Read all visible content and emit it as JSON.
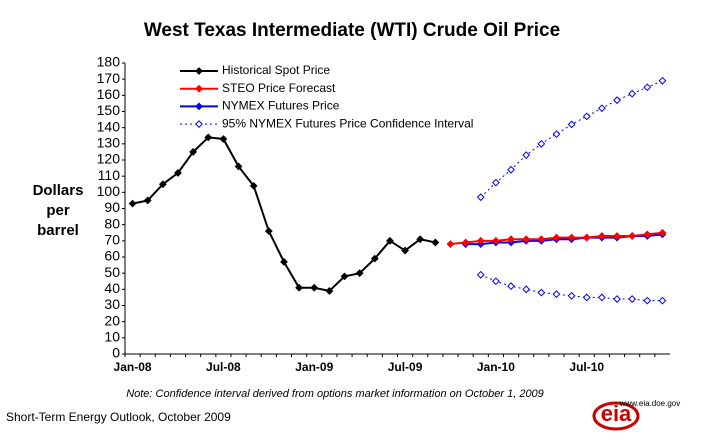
{
  "chart_data": {
    "type": "line",
    "title": "West Texas Intermediate (WTI) Crude Oil Price",
    "ylabel": [
      "Dollars",
      "per",
      "barrel"
    ],
    "note": "Note: Confidence interval derived from options market information on October 1, 2009",
    "source": "Short-Term Energy Outlook, October 2009",
    "logo": {
      "text": "eia",
      "url": "www.eia.doe.gov"
    },
    "categories": [
      "Jan-08",
      null,
      null,
      null,
      null,
      null,
      "Jul-08",
      null,
      null,
      null,
      null,
      null,
      "Jan-09",
      null,
      null,
      null,
      null,
      null,
      "Jul-09",
      null,
      null,
      null,
      null,
      null,
      "Jan-10",
      null,
      null,
      null,
      null,
      null,
      "Jul-10",
      null,
      null,
      null,
      null,
      null
    ],
    "ylim": [
      0,
      180
    ],
    "yticks": [
      0,
      10,
      20,
      30,
      40,
      50,
      60,
      70,
      80,
      90,
      100,
      110,
      120,
      130,
      140,
      150,
      160,
      170,
      180
    ],
    "grid": false,
    "series": [
      {
        "name": "Historical Spot Price",
        "color": "#000000",
        "marker": "filled",
        "dash": "solid",
        "values": [
          93,
          95,
          105,
          112,
          125,
          134,
          133,
          116,
          104,
          76,
          57,
          41,
          41,
          39,
          48,
          50,
          59,
          70,
          64,
          71,
          69,
          null,
          null,
          null,
          null,
          null,
          null,
          null,
          null,
          null,
          null,
          null,
          null,
          null,
          null,
          null
        ]
      },
      {
        "name": "STEO Price Forecast",
        "color": "#ff0000",
        "marker": "filled",
        "dash": "solid",
        "values": [
          null,
          null,
          null,
          null,
          null,
          null,
          null,
          null,
          null,
          null,
          null,
          null,
          null,
          null,
          null,
          null,
          null,
          null,
          null,
          null,
          null,
          68,
          69,
          70,
          70,
          71,
          71,
          71,
          72,
          72,
          72,
          73,
          73,
          73,
          74,
          75
        ]
      },
      {
        "name": "NYMEX Futures Price",
        "color": "#0000ff",
        "marker": "filled",
        "dash": "solid",
        "values": [
          null,
          null,
          null,
          null,
          null,
          null,
          null,
          null,
          null,
          null,
          null,
          null,
          null,
          null,
          null,
          null,
          null,
          null,
          null,
          null,
          null,
          null,
          68,
          68,
          69,
          69,
          70,
          70,
          71,
          71,
          72,
          72,
          72,
          73,
          73,
          74
        ]
      },
      {
        "name": "95% NYMEX Futures Price Confidence Interval",
        "color": "#0000ff",
        "marker": "open",
        "dash": "dotted",
        "values": [
          null,
          null,
          null,
          null,
          null,
          null,
          null,
          null,
          null,
          null,
          null,
          null,
          null,
          null,
          null,
          null,
          null,
          null,
          null,
          null,
          null,
          null,
          null,
          97,
          106,
          114,
          123,
          130,
          136,
          142,
          147,
          152,
          157,
          161,
          165,
          169
        ],
        "lower": [
          null,
          null,
          null,
          null,
          null,
          null,
          null,
          null,
          null,
          null,
          null,
          null,
          null,
          null,
          null,
          null,
          null,
          null,
          null,
          null,
          null,
          null,
          null,
          49,
          45,
          42,
          40,
          38,
          37,
          36,
          35,
          35,
          34,
          34,
          33,
          33
        ]
      }
    ]
  }
}
